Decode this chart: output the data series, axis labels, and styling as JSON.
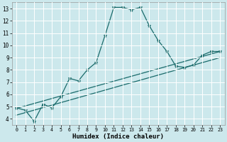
{
  "xlabel": "Humidex (Indice chaleur)",
  "bg_color": "#cce8ec",
  "grid_color": "#ffffff",
  "line_color": "#1a6b6b",
  "xlim": [
    -0.5,
    23.5
  ],
  "ylim": [
    3.5,
    13.5
  ],
  "xticks": [
    0,
    1,
    2,
    3,
    4,
    5,
    6,
    7,
    8,
    9,
    10,
    11,
    12,
    13,
    14,
    15,
    16,
    17,
    18,
    19,
    20,
    21,
    22,
    23
  ],
  "yticks": [
    4,
    5,
    6,
    7,
    8,
    9,
    10,
    11,
    12,
    13
  ],
  "line1_x": [
    0,
    1,
    2,
    3,
    4,
    5,
    6,
    7,
    8,
    9,
    10,
    11,
    12,
    13,
    14,
    15,
    16,
    17,
    18,
    19,
    20,
    21,
    22,
    23
  ],
  "line1_y": [
    4.9,
    4.7,
    3.8,
    5.2,
    4.9,
    5.8,
    7.3,
    7.1,
    8.0,
    8.6,
    10.8,
    13.1,
    13.1,
    12.9,
    13.1,
    11.6,
    10.4,
    9.5,
    8.3,
    8.2,
    8.4,
    9.2,
    9.5,
    9.5
  ],
  "line2_x": [
    0,
    23
  ],
  "line2_y": [
    4.85,
    9.5
  ],
  "line3_x": [
    0,
    23
  ],
  "line3_y": [
    4.3,
    9.0
  ]
}
